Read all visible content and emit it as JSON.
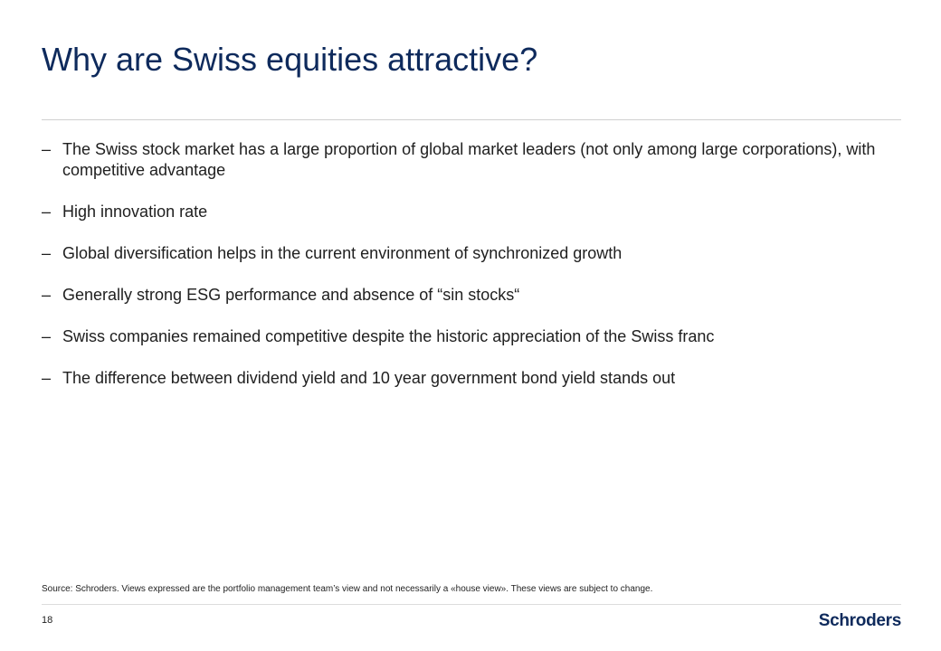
{
  "slide": {
    "title": "Why are Swiss equities attractive?",
    "bullet_marker": "–",
    "bullets": [
      "The Swiss stock market has a large proportion of global market leaders (not only among large corporations), with competitive advantage",
      "High innovation rate",
      "Global diversification helps in the current environment of synchronized growth",
      "Generally strong ESG performance and absence of  “sin stocks“",
      "Swiss companies remained competitive despite the historic appreciation of the Swiss franc",
      "The difference between dividend yield and 10 year government bond yield stands out"
    ],
    "source_note": "Source: Schroders. Views expressed are the portfolio management team’s view and not necessarily a «house view». These views are subject to change.",
    "page_number": "18",
    "logo_text": "Schroders"
  },
  "colors": {
    "title": "#0e2a5c",
    "body_text": "#202020",
    "rule": "#d0d0d0",
    "logo": "#0e2a5c"
  }
}
